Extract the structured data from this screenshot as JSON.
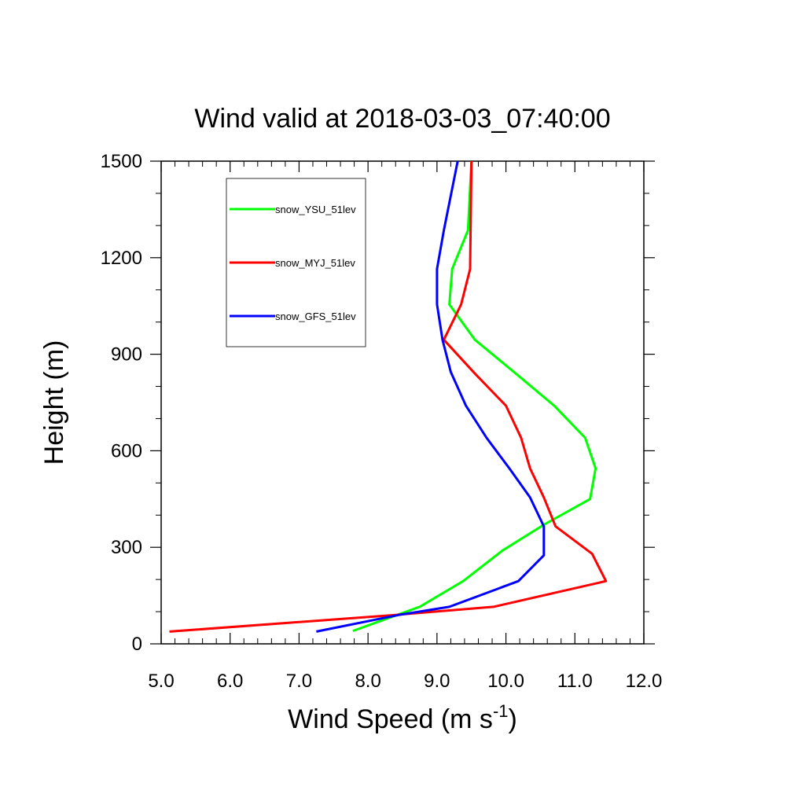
{
  "chart_data": {
    "type": "line",
    "title": "Wind valid at 2018-03-03_07:40:00",
    "xlabel": "Wind Speed (m s",
    "xlabel_superscript": "-1",
    "xlabel_suffix": ")",
    "ylabel": "Height (m)",
    "xlim": [
      5.0,
      12.0
    ],
    "ylim": [
      0,
      1500
    ],
    "x_ticks": [
      5.0,
      6.0,
      7.0,
      8.0,
      9.0,
      10.0,
      11.0,
      12.0
    ],
    "x_tick_labels": [
      "5.0",
      "6.0",
      "7.0",
      "8.0",
      "9.0",
      "10.0",
      "11.0",
      "12.0"
    ],
    "y_ticks": [
      0,
      300,
      600,
      900,
      1200,
      1500
    ],
    "y_tick_labels": [
      "0",
      "300",
      "600",
      "900",
      "1200",
      "1500"
    ],
    "legend_position": "top-left",
    "grid": false,
    "series": [
      {
        "name": "snow_YSU_51lev",
        "color": "#00ff00",
        "points": [
          [
            7.78,
            40
          ],
          [
            8.75,
            115
          ],
          [
            9.38,
            195
          ],
          [
            9.95,
            290
          ],
          [
            10.55,
            370
          ],
          [
            11.22,
            450
          ],
          [
            11.3,
            545
          ],
          [
            11.15,
            640
          ],
          [
            10.7,
            740
          ],
          [
            10.2,
            830
          ],
          [
            9.55,
            945
          ],
          [
            9.18,
            1055
          ],
          [
            9.22,
            1165
          ],
          [
            9.45,
            1285
          ],
          [
            9.5,
            1500
          ]
        ]
      },
      {
        "name": "snow_MYJ_51lev",
        "color": "#ff0000",
        "points": [
          [
            5.12,
            38
          ],
          [
            8.4,
            90
          ],
          [
            9.82,
            115
          ],
          [
            11.45,
            195
          ],
          [
            11.25,
            280
          ],
          [
            10.72,
            365
          ],
          [
            10.55,
            455
          ],
          [
            10.35,
            545
          ],
          [
            10.22,
            640
          ],
          [
            10.0,
            740
          ],
          [
            9.55,
            840
          ],
          [
            9.1,
            945
          ],
          [
            9.35,
            1055
          ],
          [
            9.48,
            1165
          ],
          [
            9.5,
            1500
          ]
        ]
      },
      {
        "name": "snow_GFS_51lev",
        "color": "#0000ff",
        "points": [
          [
            7.25,
            38
          ],
          [
            8.45,
            90
          ],
          [
            9.18,
            115
          ],
          [
            10.18,
            195
          ],
          [
            10.55,
            275
          ],
          [
            10.55,
            365
          ],
          [
            10.35,
            455
          ],
          [
            10.05,
            545
          ],
          [
            9.72,
            640
          ],
          [
            9.42,
            740
          ],
          [
            9.2,
            845
          ],
          [
            9.08,
            945
          ],
          [
            9.0,
            1055
          ],
          [
            9.0,
            1165
          ],
          [
            9.1,
            1285
          ],
          [
            9.3,
            1500
          ]
        ]
      }
    ]
  }
}
